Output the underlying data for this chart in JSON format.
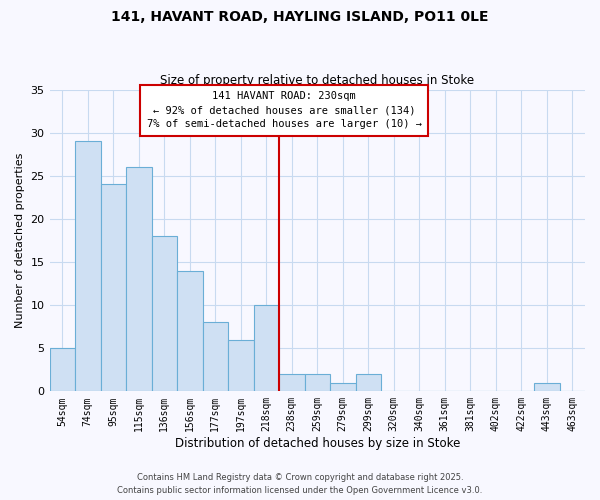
{
  "title": "141, HAVANT ROAD, HAYLING ISLAND, PO11 0LE",
  "subtitle": "Size of property relative to detached houses in Stoke",
  "xlabel": "Distribution of detached houses by size in Stoke",
  "ylabel": "Number of detached properties",
  "bar_labels": [
    "54sqm",
    "74sqm",
    "95sqm",
    "115sqm",
    "136sqm",
    "156sqm",
    "177sqm",
    "197sqm",
    "218sqm",
    "238sqm",
    "259sqm",
    "279sqm",
    "299sqm",
    "320sqm",
    "340sqm",
    "361sqm",
    "381sqm",
    "402sqm",
    "422sqm",
    "443sqm",
    "463sqm"
  ],
  "bar_values": [
    5,
    29,
    24,
    26,
    18,
    14,
    8,
    6,
    10,
    2,
    2,
    1,
    2,
    0,
    0,
    0,
    0,
    0,
    0,
    1,
    0
  ],
  "bar_color": "#cfe0f3",
  "bar_edge_color": "#6aaed6",
  "grid_color": "#c8daf0",
  "background_color": "#f8f8ff",
  "red_line_x": 8.5,
  "annotation_text": "141 HAVANT ROAD: 230sqm\n← 92% of detached houses are smaller (134)\n7% of semi-detached houses are larger (10) →",
  "annotation_box_edge_color": "#cc0000",
  "ylim": [
    0,
    35
  ],
  "yticks": [
    0,
    5,
    10,
    15,
    20,
    25,
    30,
    35
  ],
  "footer_line1": "Contains HM Land Registry data © Crown copyright and database right 2025.",
  "footer_line2": "Contains public sector information licensed under the Open Government Licence v3.0."
}
